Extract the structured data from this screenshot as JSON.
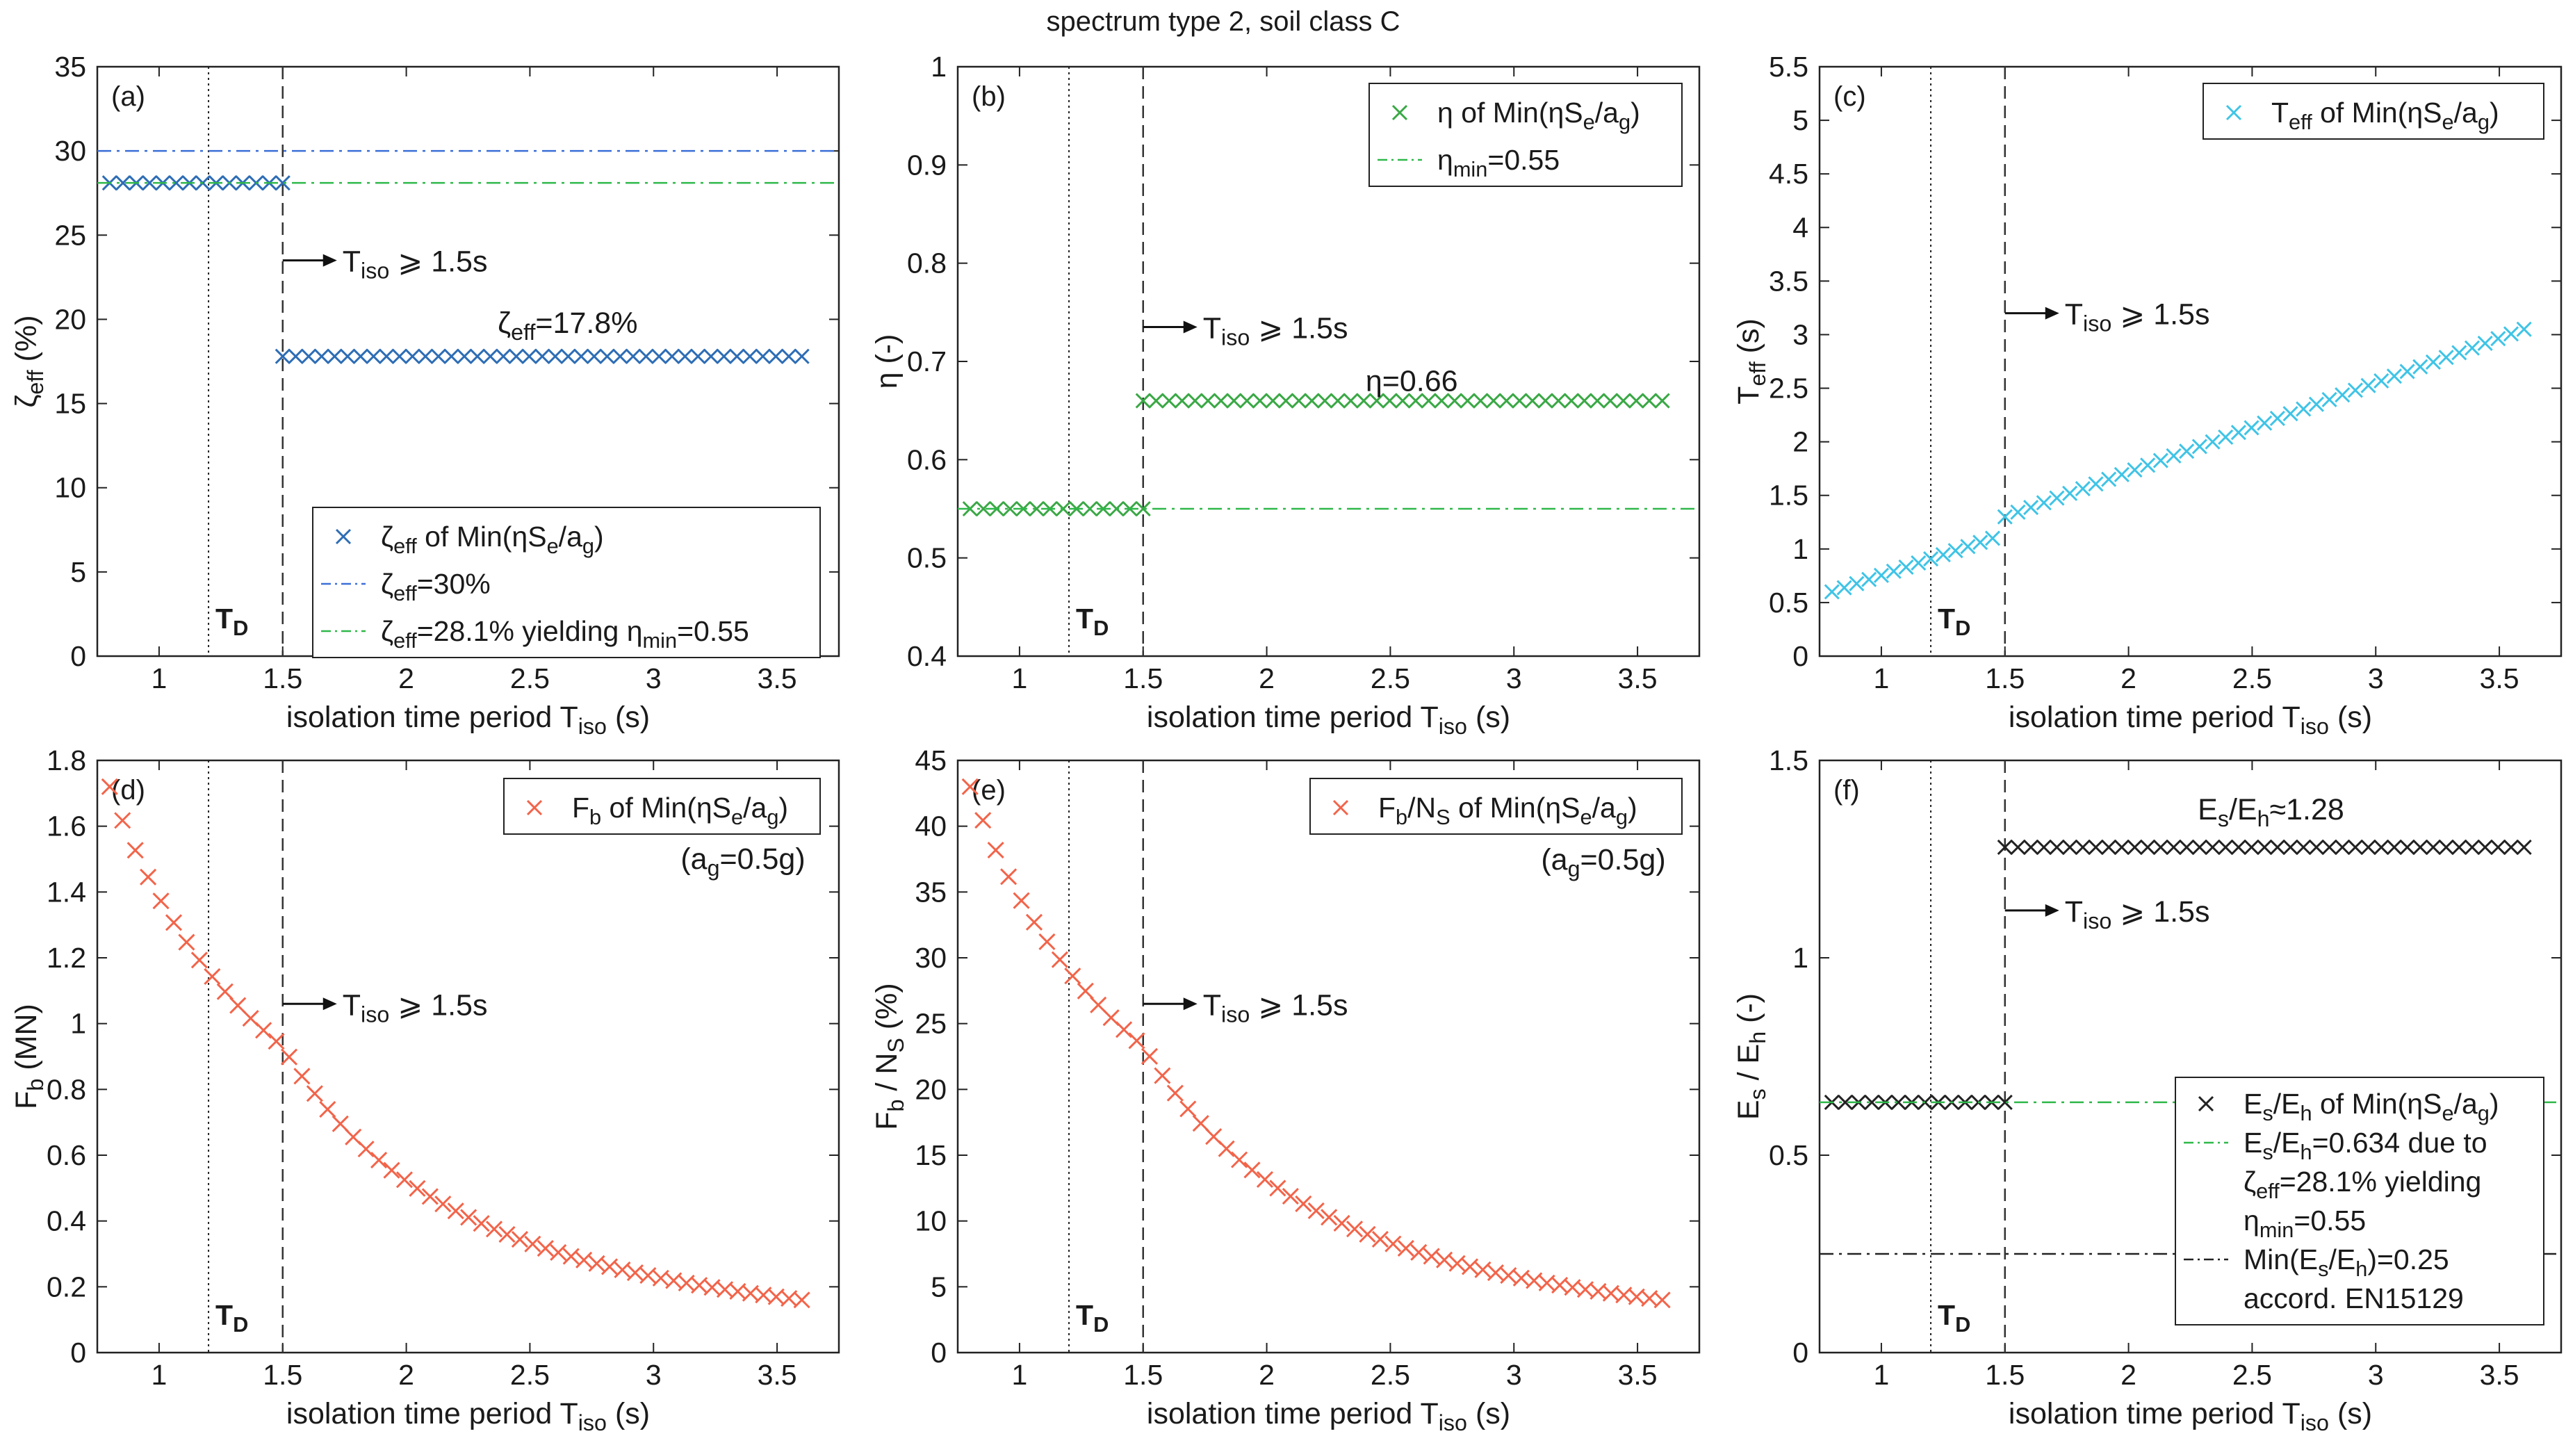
{
  "suptitle": "spectrum type 2, soil class C",
  "x_common": {
    "label_main": "isolation time period T",
    "label_sub": "iso",
    "label_unit": " (s)",
    "xlim": [
      0.75,
      3.75
    ],
    "ticks": [
      1,
      1.5,
      2,
      2.5,
      3,
      3.5
    ],
    "tick_labels": [
      "1",
      "1.5",
      "2",
      "2.5",
      "3",
      "3.5"
    ],
    "TD": 1.2,
    "T_lim": 1.5,
    "TD_label": "T",
    "TD_label_sub": "D"
  },
  "colors": {
    "blue": "#2d6db5",
    "blue_line": "#3b6fd8",
    "green": "#3aa845",
    "green_line": "#2fb84a",
    "cyan": "#3fc4e6",
    "orange": "#f2644a",
    "black": "#222222"
  },
  "chart_data": [
    {
      "id": "a",
      "panel_label": "(a)",
      "type": "scatter",
      "ylim": [
        0,
        35
      ],
      "yticks": [
        0,
        5,
        10,
        15,
        20,
        25,
        30,
        35
      ],
      "ytick_labels": [
        "0",
        "5",
        "10",
        "15",
        "20",
        "25",
        "30",
        "35"
      ],
      "ylabel": {
        "main": "ζ",
        "sub": "eff",
        "unit": " (%)"
      },
      "series": [
        {
          "name": "zeta_eff of Min(eta Se/ag)",
          "kind": "x_step",
          "segments": [
            {
              "x0": 0.8,
              "x1": 1.5,
              "y0": 28.1,
              "y1": 28.1,
              "count": 14
            },
            {
              "x0": 1.5,
              "x1": 3.6,
              "y0": 17.8,
              "y1": 17.8,
              "count": 41
            }
          ],
          "color": "blue"
        },
        {
          "name": "zeta_eff=30%",
          "kind": "hline",
          "y": 30,
          "style": "dashdot",
          "color": "blue_line"
        },
        {
          "name": "zeta_eff=28.1% yielding",
          "kind": "hline",
          "y": 28.1,
          "style": "dashdot",
          "color": "green_line"
        }
      ],
      "annotations": [
        {
          "kind": "arrow",
          "text": "T",
          "sub": "iso",
          "rest": "⩾ 1.5s",
          "x": 1.5,
          "y": 23.5
        },
        {
          "kind": "text",
          "text": "ζ",
          "sub": "eff",
          "rest": "=17.8%",
          "x": 2.37,
          "y": 19.2
        }
      ],
      "legend": {
        "placement": "lower-right",
        "entries": [
          {
            "marker": "x",
            "color": "blue",
            "text": "ζ",
            "sub": "eff",
            "rest": " of Min(ηS",
            "sub2": "e",
            "rest2": "/a",
            "sub3": "g",
            "rest3": ")"
          },
          {
            "marker": "dashdot",
            "color": "blue_line",
            "text": "ζ",
            "sub": "eff",
            "rest": "=30%"
          },
          {
            "marker": "dashdot",
            "color": "green_line",
            "text": "ζ",
            "sub": "eff",
            "rest": "=28.1% yielding η",
            "sub2": "min",
            "rest2": "=0.55"
          }
        ]
      }
    },
    {
      "id": "b",
      "panel_label": "(b)",
      "type": "scatter",
      "ylim": [
        0.4,
        1.0
      ],
      "yticks": [
        0.4,
        0.5,
        0.6,
        0.7,
        0.8,
        0.9,
        1.0
      ],
      "ytick_labels": [
        "0.4",
        "0.5",
        "0.6",
        "0.7",
        "0.8",
        "0.9",
        "1"
      ],
      "ylabel": {
        "main": "η",
        "sub": "",
        "unit": " (-)"
      },
      "series": [
        {
          "name": "eta of Min(eta Se/ag)",
          "kind": "x_step",
          "segments": [
            {
              "x0": 0.8,
              "x1": 1.5,
              "y0": 0.55,
              "y1": 0.55,
              "count": 14
            },
            {
              "x0": 1.5,
              "x1": 3.6,
              "y0": 0.66,
              "y1": 0.66,
              "count": 41
            }
          ],
          "color": "green"
        },
        {
          "name": "eta_min=0.55",
          "kind": "hline",
          "y": 0.55,
          "style": "dashdot",
          "color": "green_line"
        }
      ],
      "annotations": [
        {
          "kind": "arrow",
          "text": "T",
          "sub": "iso",
          "rest": "⩾ 1.5s",
          "x": 1.5,
          "y": 0.735
        },
        {
          "kind": "text",
          "text": "η=0.66",
          "sub": "",
          "rest": "",
          "x": 2.4,
          "y": 0.67
        }
      ],
      "legend": {
        "placement": "top-right",
        "entries": [
          {
            "marker": "x",
            "color": "green",
            "text": "η",
            "sub": "",
            "rest": " of Min(ηS",
            "sub2": "e",
            "rest2": "/a",
            "sub3": "g",
            "rest3": ")"
          },
          {
            "marker": "dashdot",
            "color": "green_line",
            "text": "η",
            "sub": "min",
            "rest": "=0.55"
          }
        ]
      }
    },
    {
      "id": "c",
      "panel_label": "(c)",
      "type": "scatter",
      "ylim": [
        0,
        5.5
      ],
      "yticks": [
        0,
        0.5,
        1,
        1.5,
        2,
        2.5,
        3,
        3.5,
        4,
        4.5,
        5,
        5.5
      ],
      "ytick_labels": [
        "0",
        "0.5",
        "1",
        "1.5",
        "2",
        "2.5",
        "3",
        "3.5",
        "4",
        "4.5",
        "5",
        "5.5"
      ],
      "ylabel": {
        "main": "T",
        "sub": "eff",
        "unit": " (s)"
      },
      "series": [
        {
          "name": "Teff of Min(eta Se/ag)",
          "kind": "x_step",
          "segments": [
            {
              "x0": 0.8,
              "x1": 1.45,
              "y0": 0.6,
              "y1": 1.1,
              "count": 14
            },
            {
              "x0": 1.5,
              "x1": 3.6,
              "y0": 1.3,
              "y1": 3.05,
              "count": 41
            }
          ],
          "color": "cyan"
        }
      ],
      "annotations": [
        {
          "kind": "arrow",
          "text": "T",
          "sub": "iso",
          "rest": "⩾ 1.5s",
          "x": 1.5,
          "y": 3.2
        }
      ],
      "legend": {
        "placement": "top-right",
        "entries": [
          {
            "marker": "x",
            "color": "cyan",
            "text": "T",
            "sub": "eff",
            "rest": " of Min(ηS",
            "sub2": "e",
            "rest2": "/a",
            "sub3": "g",
            "rest3": ")"
          }
        ]
      }
    },
    {
      "id": "d",
      "panel_label": "(d)",
      "type": "scatter",
      "ylim": [
        0,
        1.8
      ],
      "yticks": [
        0,
        0.2,
        0.4,
        0.6,
        0.8,
        1.0,
        1.2,
        1.4,
        1.6,
        1.8
      ],
      "ytick_labels": [
        "0",
        "0.2",
        "0.4",
        "0.6",
        "0.8",
        "1",
        "1.2",
        "1.4",
        "1.6",
        "1.8"
      ],
      "ylabel": {
        "main": "F",
        "sub": "b",
        "unit": "  (MN)"
      },
      "series": [
        {
          "name": "Fb of Min(eta Se/ag)",
          "kind": "decay",
          "x0": 0.8,
          "x1": 3.6,
          "count": 55,
          "y_at_x0": 1.72,
          "y_at_1_5": 0.93,
          "y_at_x1": 0.16,
          "color": "orange"
        }
      ],
      "annotations": [
        {
          "kind": "arrow",
          "text": "T",
          "sub": "iso",
          "rest": "⩾ 1.5s",
          "x": 1.5,
          "y": 1.06
        },
        {
          "kind": "text",
          "text": "(a",
          "sub": "g",
          "rest": "=0.5g)",
          "x": 3.11,
          "y": 1.47
        }
      ],
      "legend": {
        "placement": "top-right",
        "entries": [
          {
            "marker": "x",
            "color": "orange",
            "text": "F",
            "sub": "b",
            "rest": " of Min(ηS",
            "sub2": "e",
            "rest2": "/a",
            "sub3": "g",
            "rest3": ")"
          }
        ]
      }
    },
    {
      "id": "e",
      "panel_label": "(e)",
      "type": "scatter",
      "ylim": [
        0,
        45
      ],
      "yticks": [
        0,
        5,
        10,
        15,
        20,
        25,
        30,
        35,
        40,
        45
      ],
      "ytick_labels": [
        "0",
        "5",
        "10",
        "15",
        "20",
        "25",
        "30",
        "35",
        "40",
        "45"
      ],
      "ylabel": {
        "main": "F",
        "sub": "b",
        "unit": " / N",
        "sub2": "S",
        "unit2": " (%)"
      },
      "series": [
        {
          "name": "Fb/NS of Min(eta Se/ag)",
          "kind": "decay",
          "x0": 0.8,
          "x1": 3.6,
          "count": 55,
          "y_at_x0": 43.0,
          "y_at_1_5": 23.3,
          "y_at_x1": 4.0,
          "color": "orange"
        }
      ],
      "annotations": [
        {
          "kind": "arrow",
          "text": "T",
          "sub": "iso",
          "rest": "⩾ 1.5s",
          "x": 1.5,
          "y": 26.5
        },
        {
          "kind": "text",
          "text": "(a",
          "sub": "g",
          "rest": "=0.5g)",
          "x": 3.11,
          "y": 36.7
        }
      ],
      "legend": {
        "placement": "top-right",
        "entries": [
          {
            "marker": "x",
            "color": "orange",
            "text": "F",
            "sub": "b",
            "rest": "/N",
            "sub2": "S",
            "rest2": " of Min(ηS",
            "sub3": "e",
            "rest3": "/a",
            "sub4": "g",
            "rest4": ")"
          }
        ]
      }
    },
    {
      "id": "f",
      "panel_label": "(f)",
      "type": "scatter",
      "ylim": [
        0,
        1.5
      ],
      "yticks": [
        0,
        0.5,
        1.0,
        1.5
      ],
      "ytick_labels": [
        "0",
        "0.5",
        "1",
        "1.5"
      ],
      "ylabel": {
        "main": "E",
        "sub": "s",
        "unit": " / E",
        "sub2": "h",
        "unit2": "  (-)"
      },
      "series": [
        {
          "name": "Es/Eh of Min(eta Se/ag)",
          "kind": "x_step",
          "segments": [
            {
              "x0": 0.8,
              "x1": 1.5,
              "y0": 0.634,
              "y1": 0.634,
              "count": 14
            },
            {
              "x0": 1.5,
              "x1": 3.6,
              "y0": 1.28,
              "y1": 1.28,
              "count": 41
            }
          ],
          "color": "black"
        },
        {
          "name": "Es/Eh=0.634",
          "kind": "hline",
          "y": 0.634,
          "style": "dashdot",
          "color": "green_line"
        },
        {
          "name": "Min(Es/Eh)=0.25",
          "kind": "hline",
          "y": 0.25,
          "style": "dashdot",
          "color": "black"
        }
      ],
      "annotations": [
        {
          "kind": "arrow",
          "text": "T",
          "sub": "iso",
          "rest": "⩾ 1.5s",
          "x": 1.5,
          "y": 1.12
        },
        {
          "kind": "text",
          "text": "E",
          "sub": "s",
          "rest": "/E",
          "sub2": "h",
          "rest2": "≈1.28",
          "x": 2.28,
          "y": 1.35
        }
      ],
      "legend": {
        "placement": "lower-right",
        "entries": [
          {
            "marker": "x",
            "color": "black",
            "text": "E",
            "sub": "s",
            "rest": "/E",
            "sub2": "h",
            "rest2": " of Min(ηS",
            "sub3": "e",
            "rest3": "/a",
            "sub4": "g",
            "rest4": ")"
          },
          {
            "marker": "dashdot",
            "color": "green_line",
            "text": "E",
            "sub": "s",
            "rest": "/E",
            "sub2": "h",
            "rest2": "=0.634 due to"
          },
          {
            "marker": "none",
            "text": "ζ",
            "sub": "eff",
            "rest": "=28.1% yielding"
          },
          {
            "marker": "none",
            "text": "η",
            "sub": "min",
            "rest": "=0.55"
          },
          {
            "marker": "dashdot",
            "color": "black",
            "text": "Min(E",
            "sub": "s",
            "rest": "/E",
            "sub2": "h",
            "rest2": ")=0.25"
          },
          {
            "marker": "none",
            "text": "accord. EN15129",
            "sub": "",
            "rest": ""
          }
        ]
      }
    }
  ]
}
